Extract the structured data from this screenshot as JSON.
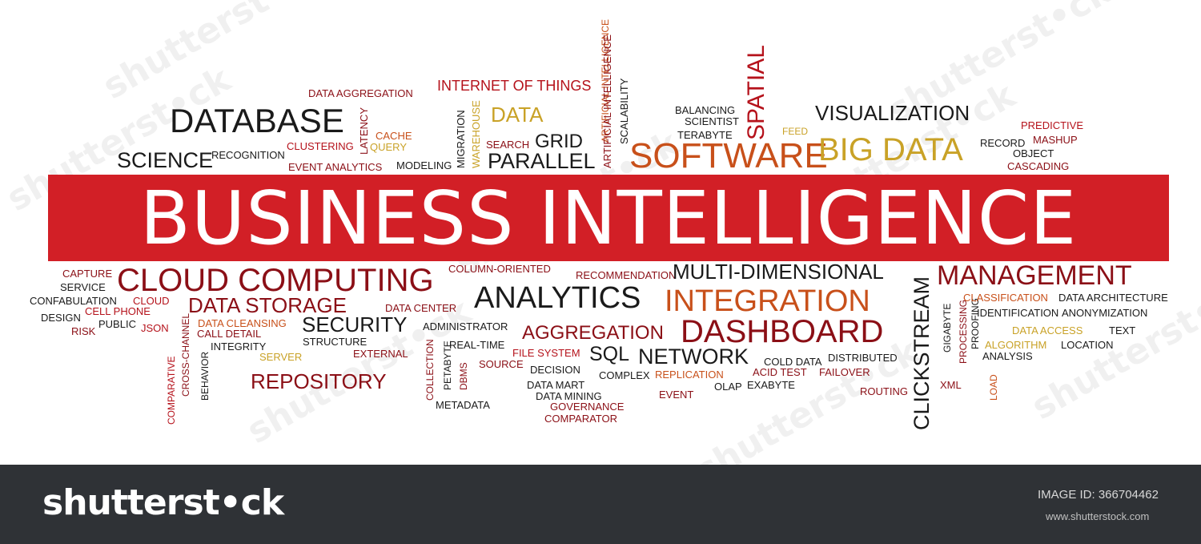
{
  "banner_title": "BUSINESS INTELLIGENCE",
  "colors": {
    "banner": "#d21f26",
    "dark": "#1a1a1a",
    "crimson": "#8b0f16",
    "red": "#b5121b",
    "orange": "#c8501a",
    "gold": "#c9a227",
    "footer": "#2f3236"
  },
  "watermark_mark": "shutterst•ck",
  "footer": {
    "logo": "shutterst•ck",
    "image_id": "IMAGE ID: 366704462",
    "site": "www.shutterstock.com"
  },
  "words": [
    {
      "t": "DATA AGGREGATION",
      "c": "crimson"
    },
    {
      "t": "INTERNET OF THINGS",
      "c": "red"
    },
    {
      "t": "ARTIFICIAL INTELLIGENCE",
      "c": "orange"
    },
    {
      "t": "SPATIAL",
      "c": "red"
    },
    {
      "t": "DATABASE",
      "c": "dark"
    },
    {
      "t": "LATENCY",
      "c": "crimson"
    },
    {
      "t": "CACHE",
      "c": "orange"
    },
    {
      "t": "QUERY",
      "c": "gold"
    },
    {
      "t": "MIGRATION",
      "c": "dark"
    },
    {
      "t": "WAREHOUSE",
      "c": "gold"
    },
    {
      "t": "DATA",
      "c": "gold"
    },
    {
      "t": "SCALABILITY",
      "c": "dark"
    },
    {
      "t": "ARTIFICIAL INTELLIGENCE",
      "c": "crimson"
    },
    {
      "t": "BALANCING",
      "c": "dark"
    },
    {
      "t": "SCIENTIST",
      "c": "dark"
    },
    {
      "t": "TERABYTE",
      "c": "dark"
    },
    {
      "t": "FEED",
      "c": "gold"
    },
    {
      "t": "VISUALIZATION",
      "c": "dark"
    },
    {
      "t": "PREDICTIVE",
      "c": "red"
    },
    {
      "t": "CLUSTERING",
      "c": "red"
    },
    {
      "t": "SCIENCE",
      "c": "dark"
    },
    {
      "t": "RECOGNITION",
      "c": "dark"
    },
    {
      "t": "EVENT ANALYTICS",
      "c": "crimson"
    },
    {
      "t": "MODELING",
      "c": "dark"
    },
    {
      "t": "SEARCH",
      "c": "crimson"
    },
    {
      "t": "GRID",
      "c": "dark"
    },
    {
      "t": "PARALLEL",
      "c": "dark"
    },
    {
      "t": "SOFTWARE",
      "c": "orange"
    },
    {
      "t": "BIG DATA",
      "c": "gold"
    },
    {
      "t": "RECORD",
      "c": "dark"
    },
    {
      "t": "MASHUP",
      "c": "crimson"
    },
    {
      "t": "OBJECT",
      "c": "dark"
    },
    {
      "t": "CASCADING",
      "c": "crimson"
    },
    {
      "t": "CAPTURE",
      "c": "crimson"
    },
    {
      "t": "CLOUD COMPUTING",
      "c": "crimson"
    },
    {
      "t": "COLUMN-ORIENTED",
      "c": "crimson"
    },
    {
      "t": "RECOMMENDATION",
      "c": "crimson"
    },
    {
      "t": "MULTI-DIMENSIONAL",
      "c": "dark"
    },
    {
      "t": "CLICKSTREAM",
      "c": "dark"
    },
    {
      "t": "MANAGEMENT",
      "c": "crimson"
    },
    {
      "t": "SERVICE",
      "c": "dark"
    },
    {
      "t": "CONFABULATION",
      "c": "dark"
    },
    {
      "t": "CLOUD",
      "c": "red"
    },
    {
      "t": "DATA STORAGE",
      "c": "crimson"
    },
    {
      "t": "DATA CENTER",
      "c": "crimson"
    },
    {
      "t": "ANALYTICS",
      "c": "dark"
    },
    {
      "t": "INTEGRATION",
      "c": "orange"
    },
    {
      "t": "GIGABYTE",
      "c": "dark"
    },
    {
      "t": "PROCESSING",
      "c": "crimson"
    },
    {
      "t": "PROOFING",
      "c": "dark"
    },
    {
      "t": "CLASSIFICATION",
      "c": "orange"
    },
    {
      "t": "DATA ARCHITECTURE",
      "c": "dark"
    },
    {
      "t": "DESIGN",
      "c": "dark"
    },
    {
      "t": "CELL PHONE",
      "c": "red"
    },
    {
      "t": "PUBLIC",
      "c": "dark"
    },
    {
      "t": "RISK",
      "c": "crimson"
    },
    {
      "t": "JSON",
      "c": "red"
    },
    {
      "t": "DATA CLEANSING",
      "c": "orange"
    },
    {
      "t": "CALL DETAIL",
      "c": "crimson"
    },
    {
      "t": "SECURITY",
      "c": "dark"
    },
    {
      "t": "ADMINISTRATOR",
      "c": "dark"
    },
    {
      "t": "AGGREGATION",
      "c": "crimson"
    },
    {
      "t": "DASHBOARD",
      "c": "crimson"
    },
    {
      "t": "IDENTIFICATION",
      "c": "dark"
    },
    {
      "t": "ANONYMIZATION",
      "c": "dark"
    },
    {
      "t": "DATA ACCESS",
      "c": "gold"
    },
    {
      "t": "TEXT",
      "c": "dark"
    },
    {
      "t": "STRUCTURE",
      "c": "dark"
    },
    {
      "t": "INTEGRITY",
      "c": "dark"
    },
    {
      "t": "COMPARATIVE",
      "c": "red"
    },
    {
      "t": "CROSS-CHANNEL",
      "c": "crimson"
    },
    {
      "t": "BEHAVIOR",
      "c": "dark"
    },
    {
      "t": "EXTERNAL",
      "c": "crimson"
    },
    {
      "t": "COLLECTION",
      "c": "crimson"
    },
    {
      "t": "PETABYTE",
      "c": "dark"
    },
    {
      "t": "REAL-TIME",
      "c": "dark"
    },
    {
      "t": "FILE SYSTEM",
      "c": "red"
    },
    {
      "t": "SQL",
      "c": "dark"
    },
    {
      "t": "NETWORK",
      "c": "dark"
    },
    {
      "t": "ALGORITHM",
      "c": "gold"
    },
    {
      "t": "LOCATION",
      "c": "dark"
    },
    {
      "t": "ANALYSIS",
      "c": "dark"
    },
    {
      "t": "SERVER",
      "c": "gold"
    },
    {
      "t": "DBMS",
      "c": "crimson"
    },
    {
      "t": "SOURCE",
      "c": "crimson"
    },
    {
      "t": "DECISION",
      "c": "dark"
    },
    {
      "t": "COLD DATA",
      "c": "dark"
    },
    {
      "t": "DISTRIBUTED",
      "c": "dark"
    },
    {
      "t": "REPOSITORY",
      "c": "crimson"
    },
    {
      "t": "COMPLEX",
      "c": "dark"
    },
    {
      "t": "REPLICATION",
      "c": "orange"
    },
    {
      "t": "ACID TEST",
      "c": "crimson"
    },
    {
      "t": "FAILOVER",
      "c": "crimson"
    },
    {
      "t": "DATA MART",
      "c": "dark"
    },
    {
      "t": "OLAP",
      "c": "dark"
    },
    {
      "t": "EXABYTE",
      "c": "dark"
    },
    {
      "t": "XML",
      "c": "crimson"
    },
    {
      "t": "LOAD",
      "c": "orange"
    },
    {
      "t": "DATA MINING",
      "c": "dark"
    },
    {
      "t": "EVENT",
      "c": "crimson"
    },
    {
      "t": "ROUTING",
      "c": "crimson"
    },
    {
      "t": "METADATA",
      "c": "dark"
    },
    {
      "t": "GOVERNANCE",
      "c": "crimson"
    },
    {
      "t": "COMPARATOR",
      "c": "crimson"
    }
  ]
}
